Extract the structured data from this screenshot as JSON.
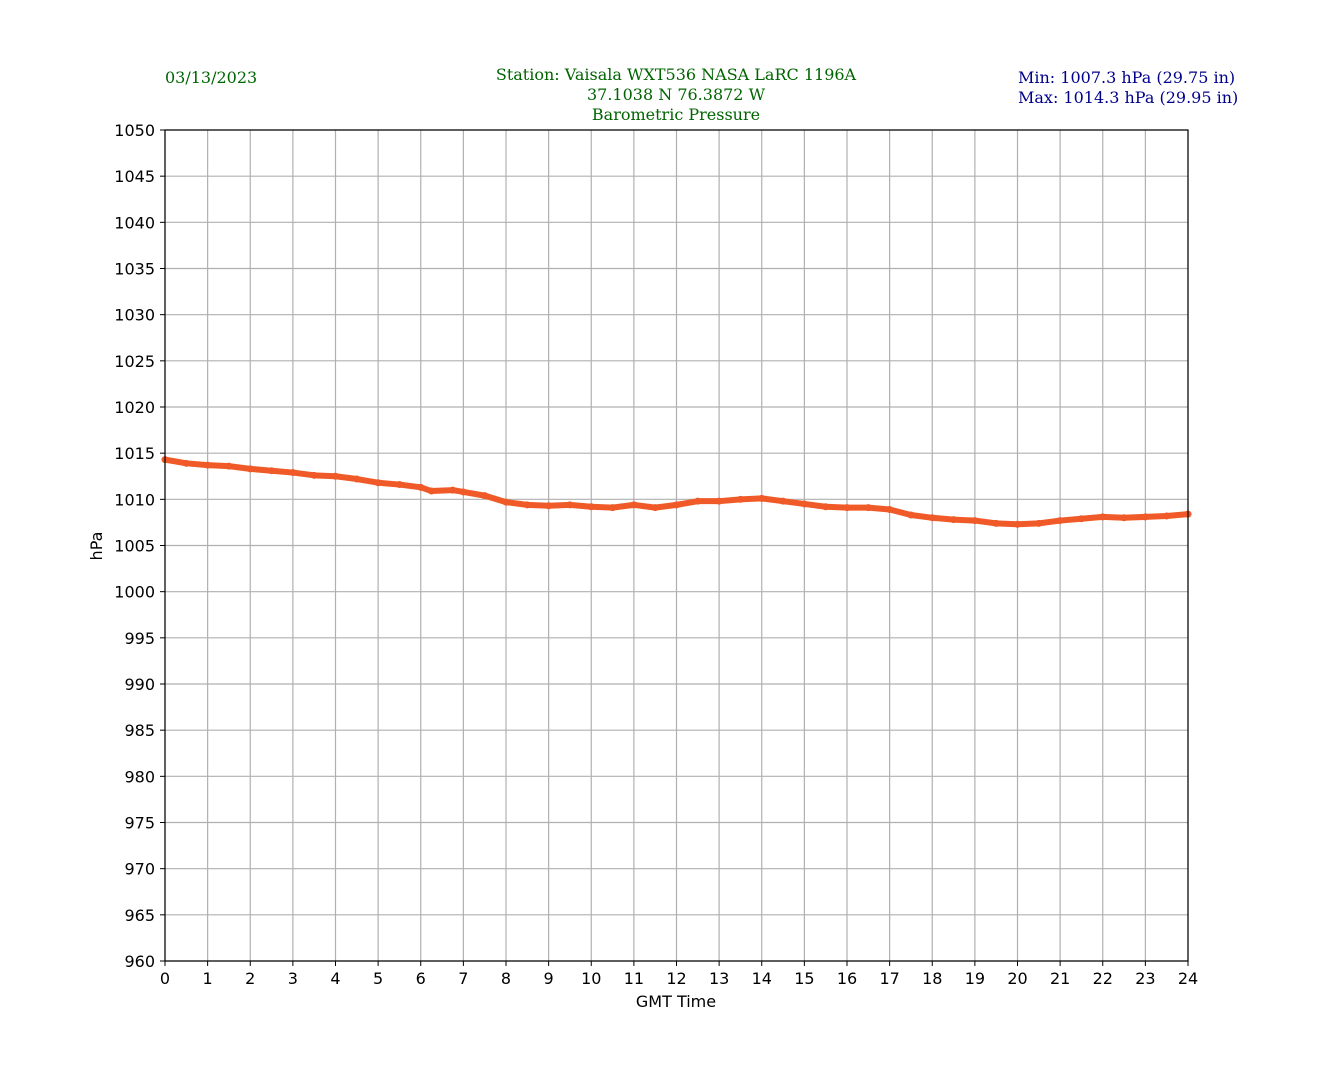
{
  "header": {
    "date": "03/13/2023",
    "station_line": "Station:  Vaisala WXT536  NASA LaRC 1196A",
    "coords_line": "37.1038 N 76.3872 W",
    "title": "Barometric Pressure",
    "min_text": "Min: 1007.3 hPa (29.75 in)",
    "max_text": "Max: 1014.3 hPa (29.95 in)"
  },
  "colors": {
    "series": "#f05a28",
    "header_green": "#006400",
    "header_blue": "#00008b",
    "grid": "#b0b0b0"
  },
  "chart_data": {
    "type": "line",
    "title": "Barometric Pressure",
    "xlabel": "GMT Time",
    "ylabel": "hPa",
    "xlim": [
      0,
      24
    ],
    "ylim": [
      960,
      1050
    ],
    "xticks": [
      0,
      1,
      2,
      3,
      4,
      5,
      6,
      7,
      8,
      9,
      10,
      11,
      12,
      13,
      14,
      15,
      16,
      17,
      18,
      19,
      20,
      21,
      22,
      23,
      24
    ],
    "yticks": [
      960,
      965,
      970,
      975,
      980,
      985,
      990,
      995,
      1000,
      1005,
      1010,
      1015,
      1020,
      1025,
      1030,
      1035,
      1040,
      1045,
      1050
    ],
    "grid": true,
    "series": [
      {
        "name": "Barometric Pressure",
        "x": [
          0,
          0.5,
          1,
          1.5,
          2,
          2.5,
          3,
          3.5,
          4,
          4.5,
          5,
          5.5,
          6,
          6.25,
          6.75,
          7,
          7.5,
          8,
          8.5,
          9,
          9.5,
          10,
          10.5,
          11,
          11.5,
          12,
          12.5,
          13,
          13.5,
          14,
          14.5,
          15,
          15.5,
          16,
          16.5,
          17,
          17.5,
          18,
          18.5,
          19,
          19.5,
          20,
          20.5,
          21,
          21.5,
          22,
          22.5,
          23,
          23.5,
          24
        ],
        "y": [
          1014.3,
          1013.9,
          1013.7,
          1013.6,
          1013.3,
          1013.1,
          1012.9,
          1012.6,
          1012.5,
          1012.2,
          1011.8,
          1011.6,
          1011.3,
          1010.9,
          1011.0,
          1010.8,
          1010.4,
          1009.7,
          1009.4,
          1009.3,
          1009.4,
          1009.2,
          1009.1,
          1009.4,
          1009.1,
          1009.4,
          1009.8,
          1009.8,
          1010.0,
          1010.1,
          1009.8,
          1009.5,
          1009.2,
          1009.1,
          1009.1,
          1008.9,
          1008.3,
          1008.0,
          1007.8,
          1007.7,
          1007.4,
          1007.3,
          1007.4,
          1007.7,
          1007.9,
          1008.1,
          1008.0,
          1008.1,
          1008.2,
          1008.4
        ]
      }
    ]
  }
}
